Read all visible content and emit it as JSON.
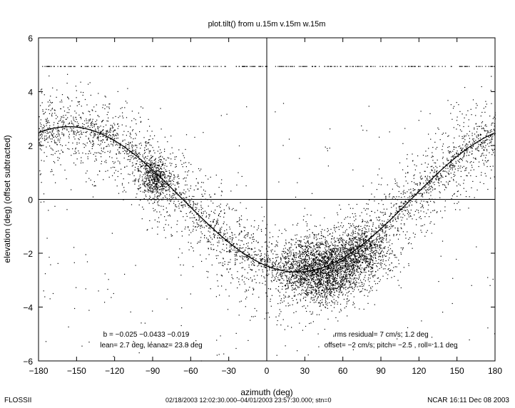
{
  "chart_data": {
    "type": "scatter",
    "title": "plot.tilt() from u.15m v.15m w.15m",
    "xlabel": "azimuth (deg)",
    "ylabel": "elevation (deg)  (offset subtracted)",
    "xlim": [
      -180,
      180
    ],
    "ylim": [
      -6,
      6
    ],
    "xticks": [
      -180,
      -150,
      -120,
      -90,
      -60,
      -30,
      0,
      30,
      60,
      90,
      120,
      150,
      180
    ],
    "yticks": [
      -6,
      -4,
      -2,
      0,
      2,
      4,
      6
    ],
    "xtick_labels": [
      "−180",
      "−150",
      "−120",
      "−90",
      "−60",
      "−30",
      "0",
      "30",
      "60",
      "90",
      "120",
      "150",
      "180"
    ],
    "ytick_labels": [
      "−6",
      "−4",
      "−2",
      "0",
      "2",
      "4",
      "6"
    ],
    "grid": false,
    "zero_lines": true,
    "fit_curve": {
      "amplitude": 2.7,
      "peak_azimuth": -156.2
    },
    "clusters": [
      {
        "azimuth": -88,
        "elevation": 0.8,
        "spread_azimuth": 6,
        "spread_elevation": 0.4,
        "count": 500
      },
      {
        "azimuth": 45,
        "elevation": -2.6,
        "spread_azimuth": 16,
        "spread_elevation": 0.6,
        "count": 2100
      },
      {
        "azimuth": 75,
        "elevation": -1.9,
        "spread_azimuth": 12,
        "spread_elevation": 0.5,
        "count": 700
      }
    ],
    "saturation_elevation": 4.95,
    "annotations": {
      "coefficients": "b = −0.025  −0.0433  −0.019",
      "lean": "lean= 2.7 deg, leanaz= 23.8 deg",
      "rms": "rms residual= 7 cm/s,  1.2 deg",
      "offset": "offset= −2 cm/s; pitch= −2.5 ,  roll=  1.1 deg"
    }
  },
  "footer": {
    "left": "FLOSSII",
    "center": "02/18/2003 12:02:30.000–04/01/2003 23:57:30.000; stn=0",
    "right": "NCAR 16:11 Dec 08 2003"
  }
}
